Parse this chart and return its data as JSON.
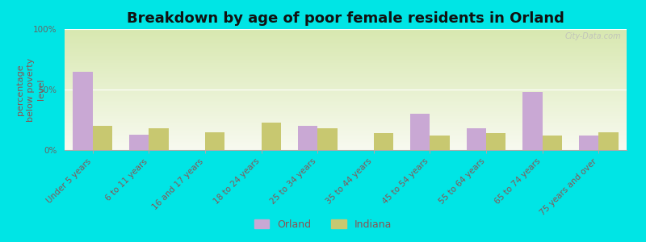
{
  "title": "Breakdown by age of poor female residents in Orland",
  "ylabel": "percentage\nbelow poverty\nlevel",
  "categories": [
    "Under 5 years",
    "6 to 11 years",
    "16 and 17 years",
    "18 to 24 years",
    "25 to 34 years",
    "35 to 44 years",
    "45 to 54 years",
    "55 to 64 years",
    "65 to 74 years",
    "75 years and over"
  ],
  "orland_values": [
    65,
    13,
    0,
    0,
    20,
    0,
    30,
    18,
    48,
    12
  ],
  "indiana_values": [
    20,
    18,
    15,
    23,
    18,
    14,
    12,
    14,
    12,
    15
  ],
  "orland_color": "#c9a8d4",
  "indiana_color": "#c8c870",
  "background_color": "#00e5e5",
  "plot_bg_top": "#d8e8b0",
  "plot_bg_bottom": "#f8faf0",
  "ylim": [
    0,
    100
  ],
  "yticks": [
    0,
    50,
    100
  ],
  "ytick_labels": [
    "0%",
    "50%",
    "100%"
  ],
  "bar_width": 0.35,
  "legend_orland": "Orland",
  "legend_indiana": "Indiana",
  "title_fontsize": 13,
  "axis_label_fontsize": 8,
  "tick_fontsize": 7.5,
  "legend_fontsize": 9,
  "watermark": "City-Data.com"
}
